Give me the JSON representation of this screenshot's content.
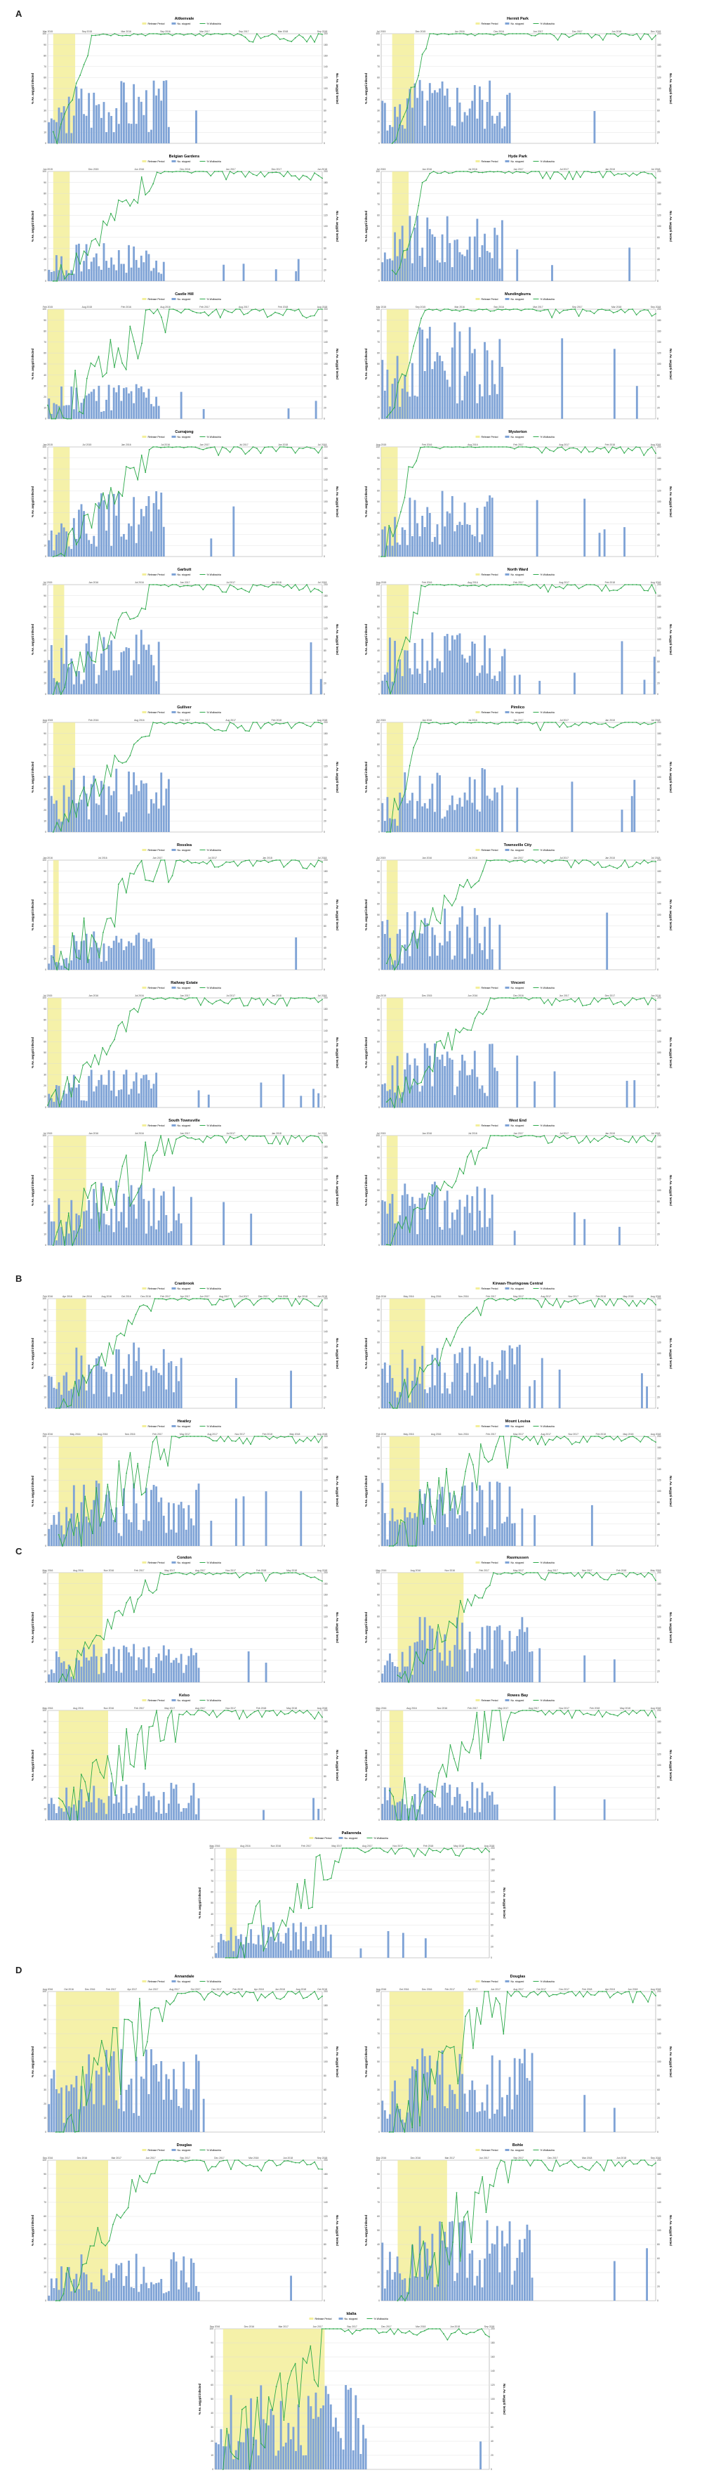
{
  "panels": [
    {
      "letter": "A",
      "charts": [
        {
          "title": "Aitkenvale",
          "release": [
            0.02,
            0.1
          ],
          "x_ticks": [
            "Mar 2015",
            "Sep 2015",
            "Mar 2016",
            "Sep 2016",
            "Mar 2017",
            "Sep 2017",
            "Mar 2018",
            "Sep 2018"
          ],
          "seed": 3,
          "pattern": "steep",
          "bars": "mid"
        },
        {
          "title": "Hermit Park",
          "release": [
            0.04,
            0.12
          ],
          "x_ticks": [
            "Jul 2015",
            "Dec 2015",
            "Jun 2016",
            "Dec 2016",
            "Jun 2017",
            "Dec 2017",
            "Jun 2018",
            "Dec 2018"
          ],
          "seed": 5,
          "pattern": "steep",
          "bars": "mid"
        },
        {
          "title": "Belgian Gardens",
          "release": [
            0.02,
            0.08
          ],
          "x_ticks": [
            "Jun 2015",
            "Dec 2015",
            "Jun 2016",
            "Dec 2016",
            "Jun 2017",
            "Dec 2017",
            "Jun 2018"
          ],
          "seed": 7,
          "pattern": "slow",
          "bars": "low"
        },
        {
          "title": "Hyde Park",
          "release": [
            0.04,
            0.1
          ],
          "x_ticks": [
            "Jul 2015",
            "Jan 2016",
            "Jul 2016",
            "Jan 2017",
            "Jul 2017",
            "Jan 2018",
            "Jul 2018"
          ],
          "seed": 9,
          "pattern": "steep",
          "bars": "mid"
        },
        {
          "title": "Castle Hill",
          "release": [
            0.0,
            0.06
          ],
          "x_ticks": [
            "Feb 2015",
            "Aug 2015",
            "Feb 2016",
            "Aug 2016",
            "Feb 2017",
            "Aug 2017",
            "Feb 2018",
            "Aug 2018"
          ],
          "seed": 11,
          "pattern": "erratic",
          "bars": "low"
        },
        {
          "title": "Mundingburra",
          "release": [
            0.02,
            0.1
          ],
          "x_ticks": [
            "Mar 2015",
            "Sep 2015",
            "Mar 2016",
            "Sep 2016",
            "Mar 2017",
            "Sep 2017",
            "Mar 2018",
            "Sep 2018"
          ],
          "seed": 13,
          "pattern": "steep",
          "bars": "high"
        },
        {
          "title": "Currajong",
          "release": [
            0.02,
            0.08
          ],
          "x_ticks": [
            "Jan 2015",
            "Jul 2015",
            "Jan 2016",
            "Jul 2016",
            "Jan 2017",
            "Jul 2017",
            "Jan 2018",
            "Jul 2018"
          ],
          "seed": 15,
          "pattern": "slow",
          "bars": "mid"
        },
        {
          "title": "Mysterton",
          "release": [
            0.0,
            0.06
          ],
          "x_ticks": [
            "Aug 2015",
            "Feb 2016",
            "Aug 2016",
            "Feb 2017",
            "Aug 2017",
            "Feb 2018",
            "Aug 2018"
          ],
          "seed": 17,
          "pattern": "steep",
          "bars": "mid"
        },
        {
          "title": "Garbutt",
          "release": [
            0.02,
            0.06
          ],
          "x_ticks": [
            "Jul 2015",
            "Jan 2016",
            "Jul 2016",
            "Jan 2017",
            "Jul 2017",
            "Jan 2018",
            "Jul 2018"
          ],
          "seed": 19,
          "pattern": "slow",
          "bars": "mid"
        },
        {
          "title": "North Ward",
          "release": [
            0.02,
            0.1
          ],
          "x_ticks": [
            "Aug 2015",
            "Feb 2016",
            "Aug 2016",
            "Feb 2017",
            "Aug 2017",
            "Feb 2018",
            "Aug 2018"
          ],
          "seed": 21,
          "pattern": "steep",
          "bars": "mid"
        },
        {
          "title": "Gulliver",
          "release": [
            0.02,
            0.1
          ],
          "x_ticks": [
            "Aug 2015",
            "Feb 2016",
            "Aug 2016",
            "Feb 2017",
            "Aug 2017",
            "Feb 2018",
            "Aug 2018"
          ],
          "seed": 23,
          "pattern": "slow",
          "bars": "mid"
        },
        {
          "title": "Pimlico",
          "release": [
            0.02,
            0.08
          ],
          "x_ticks": [
            "Jul 2015",
            "Jan 2016",
            "Jul 2016",
            "Jan 2017",
            "Jul 2017",
            "Jan 2018",
            "Jul 2018"
          ],
          "seed": 25,
          "pattern": "steep",
          "bars": "mid"
        },
        {
          "title": "Rosslea",
          "release": [
            0.02,
            0.04
          ],
          "x_ticks": [
            "Jan 2016",
            "Jul 2016",
            "Jan 2017",
            "Jul 2017",
            "Jan 2018",
            "Jul 2018"
          ],
          "seed": 27,
          "pattern": "erratic",
          "bars": "low"
        },
        {
          "title": "Townsville City",
          "release": [
            0.02,
            0.06
          ],
          "x_ticks": [
            "Jul 2015",
            "Jan 2016",
            "Jul 2016",
            "Jan 2017",
            "Jul 2017",
            "Jan 2018",
            "Jul 2018"
          ],
          "seed": 29,
          "pattern": "slow",
          "bars": "mid"
        },
        {
          "title": "Railway Estate",
          "release": [
            0.0,
            0.05
          ],
          "x_ticks": [
            "Jul 2015",
            "Jan 2016",
            "Jul 2016",
            "Jan 2017",
            "Jul 2017",
            "Jan 2018",
            "Jul 2018"
          ],
          "seed": 31,
          "pattern": "slow",
          "bars": "low"
        },
        {
          "title": "Vincent",
          "release": [
            0.02,
            0.08
          ],
          "x_ticks": [
            "Jun 2015",
            "Dec 2015",
            "Jun 2016",
            "Dec 2016",
            "Jun 2017",
            "Dec 2017",
            "Jun 2018"
          ],
          "seed": 33,
          "pattern": "slow",
          "bars": "mid"
        },
        {
          "title": "South Townsville",
          "release": [
            0.02,
            0.14
          ],
          "x_ticks": [
            "Jul 2015",
            "Jan 2016",
            "Jul 2016",
            "Jan 2017",
            "Jul 2017",
            "Jan 2018",
            "Jul 2018"
          ],
          "seed": 35,
          "pattern": "erratic",
          "bars": "mid"
        },
        {
          "title": "West End",
          "release": [
            0.02,
            0.06
          ],
          "x_ticks": [
            "Jul 2015",
            "Jan 2016",
            "Jul 2016",
            "Jan 2017",
            "Jul 2017",
            "Jan 2018",
            "Jul 2018"
          ],
          "seed": 37,
          "pattern": "slow",
          "bars": "mid"
        }
      ]
    },
    {
      "letter": "B",
      "charts": [
        {
          "title": "Cranbrook",
          "release": [
            0.03,
            0.14
          ],
          "x_ticks": [
            "Feb 2016",
            "Apr 2016",
            "Jun 2016",
            "Aug 2016",
            "Oct 2016",
            "Dec 2016",
            "Feb 2017",
            "Apr 2017",
            "Jun 2017",
            "Aug 2017",
            "Oct 2017",
            "Dec 2017",
            "Feb 2018",
            "Apr 2018",
            "Jun 2018"
          ],
          "seed": 41,
          "pattern": "slow",
          "bars": "mid"
        },
        {
          "title": "Kirwan-Thuringowa Central",
          "release": [
            0.03,
            0.16
          ],
          "x_ticks": [
            "Feb 2016",
            "May 2016",
            "Aug 2016",
            "Nov 2016",
            "Feb 2017",
            "May 2017",
            "Aug 2017",
            "Nov 2017",
            "Feb 2018",
            "May 2018",
            "Aug 2018"
          ],
          "seed": 43,
          "pattern": "slow",
          "bars": "mid"
        },
        {
          "title": "Heatley",
          "release": [
            0.04,
            0.2
          ],
          "x_ticks": [
            "Feb 2016",
            "May 2016",
            "Aug 2016",
            "Nov 2016",
            "Feb 2017",
            "May 2017",
            "Aug 2017",
            "Nov 2017",
            "Feb 2018",
            "May 2018",
            "Aug 2018"
          ],
          "seed": 45,
          "pattern": "erratic",
          "bars": "mid"
        },
        {
          "title": "Mount Louisa",
          "release": [
            0.03,
            0.14
          ],
          "x_ticks": [
            "Feb 2016",
            "May 2016",
            "Aug 2016",
            "Nov 2016",
            "Feb 2017",
            "May 2017",
            "Aug 2017",
            "Nov 2017",
            "Feb 2018",
            "May 2018",
            "Aug 2018"
          ],
          "seed": 47,
          "pattern": "erratic",
          "bars": "mid"
        }
      ]
    },
    {
      "letter": "C",
      "charts": [
        {
          "title": "Condon",
          "release": [
            0.04,
            0.2
          ],
          "x_ticks": [
            "May 2016",
            "Aug 2016",
            "Nov 2016",
            "Feb 2017",
            "May 2017",
            "Aug 2017",
            "Nov 2017",
            "Feb 2018",
            "May 2018",
            "Aug 2018"
          ],
          "seed": 51,
          "pattern": "slow",
          "bars": "low"
        },
        {
          "title": "Rasmussen",
          "release": [
            0.06,
            0.3
          ],
          "x_ticks": [
            "May 2016",
            "Aug 2016",
            "Nov 2016",
            "Feb 2017",
            "May 2017",
            "Aug 2017",
            "Nov 2017",
            "Feb 2018",
            "May 2018"
          ],
          "seed": 53,
          "pattern": "slow",
          "bars": "mid"
        },
        {
          "title": "Kelso",
          "release": [
            0.04,
            0.22
          ],
          "x_ticks": [
            "May 2016",
            "Aug 2016",
            "Nov 2016",
            "Feb 2017",
            "May 2017",
            "Aug 2017",
            "Nov 2017",
            "Feb 2018",
            "May 2018",
            "Aug 2018"
          ],
          "seed": 55,
          "pattern": "erratic",
          "bars": "low"
        },
        {
          "title": "Rowes Bay",
          "release": [
            0.03,
            0.08
          ],
          "x_ticks": [
            "May 2016",
            "Aug 2016",
            "Nov 2016",
            "Feb 2017",
            "May 2017",
            "Aug 2017",
            "Nov 2017",
            "Feb 2018",
            "May 2018",
            "Aug 2018"
          ],
          "seed": 57,
          "pattern": "erratic",
          "bars": "low"
        },
        {
          "title": "Pallarenda",
          "release": [
            0.04,
            0.08
          ],
          "x_ticks": [
            "May 2016",
            "Aug 2016",
            "Nov 2016",
            "Feb 2017",
            "May 2017",
            "Aug 2017",
            "Nov 2017",
            "Feb 2018",
            "May 2018",
            "Aug 2018"
          ],
          "seed": 59,
          "pattern": "erratic",
          "bars": "low"
        }
      ]
    },
    {
      "letter": "D",
      "charts": [
        {
          "title": "Annandale",
          "release": [
            0.03,
            0.26
          ],
          "x_ticks": [
            "Aug 2016",
            "Oct 2016",
            "Dec 2016",
            "Feb 2017",
            "Apr 2017",
            "Jun 2017",
            "Aug 2017",
            "Oct 2017",
            "Dec 2017",
            "Feb 2018",
            "Apr 2018",
            "Jun 2018",
            "Aug 2018",
            "Oct 2018"
          ],
          "seed": 61,
          "pattern": "erratic",
          "bars": "mid"
        },
        {
          "title": "Douglas",
          "release": [
            0.03,
            0.3
          ],
          "x_ticks": [
            "Aug 2016",
            "Oct 2016",
            "Dec 2016",
            "Feb 2017",
            "Apr 2017",
            "Jun 2017",
            "Aug 2017",
            "Oct 2017",
            "Dec 2017",
            "Feb 2018",
            "Apr 2018",
            "Jun 2018",
            "Aug 2018"
          ],
          "seed": 63,
          "pattern": "erratic",
          "bars": "mid"
        },
        {
          "title": "Douglas",
          "release": [
            0.03,
            0.22
          ],
          "x_ticks": [
            "Sep 2016",
            "Dec 2016",
            "Mar 2017",
            "Jun 2017",
            "Sep 2017",
            "Dec 2017",
            "Mar 2018",
            "Jun 2018",
            "Sep 2018"
          ],
          "seed": 65,
          "pattern": "slow",
          "bars": "low"
        },
        {
          "title": "Bohle",
          "release": [
            0.06,
            0.24
          ],
          "x_ticks": [
            "Sep 2016",
            "Dec 2016",
            "Mar 2017",
            "Jun 2017",
            "Sep 2017",
            "Dec 2017",
            "Mar 2018",
            "Jun 2018",
            "Sep 2018"
          ],
          "seed": 67,
          "pattern": "erratic",
          "bars": "mid"
        },
        {
          "title": "Idalia",
          "release": [
            0.03,
            0.4
          ],
          "x_ticks": [
            "Sep 2016",
            "Dec 2016",
            "Mar 2017",
            "Jun 2017",
            "Sep 2017",
            "Dec 2017",
            "Mar 2018",
            "Jun 2018",
            "Sep 2018"
          ],
          "seed": 69,
          "pattern": "erratic",
          "bars": "mid"
        }
      ]
    }
  ],
  "legend": {
    "release": "Release Period",
    "bars": "No. stopped",
    "line": "% Wolbachia"
  },
  "axes": {
    "left_label": "% Ae. aegypti infected",
    "right_label": "No. Ae. aegypti tested"
  },
  "colors": {
    "release": "#f3ef9a",
    "bars": "#7fa3d6",
    "line": "#2eaa4b",
    "grid": "#dcdcdc",
    "axis": "#888888"
  },
  "chart_data": {
    "type": "bar+line",
    "description_note": "Per-suburb charts: bars = count tested (right axis), line = % infected (left axis 0-100).",
    "y_left_range": [
      0,
      100
    ],
    "y_left_ticks": [
      0,
      10,
      20,
      30,
      40,
      50,
      60,
      70,
      80,
      90,
      100
    ]
  }
}
